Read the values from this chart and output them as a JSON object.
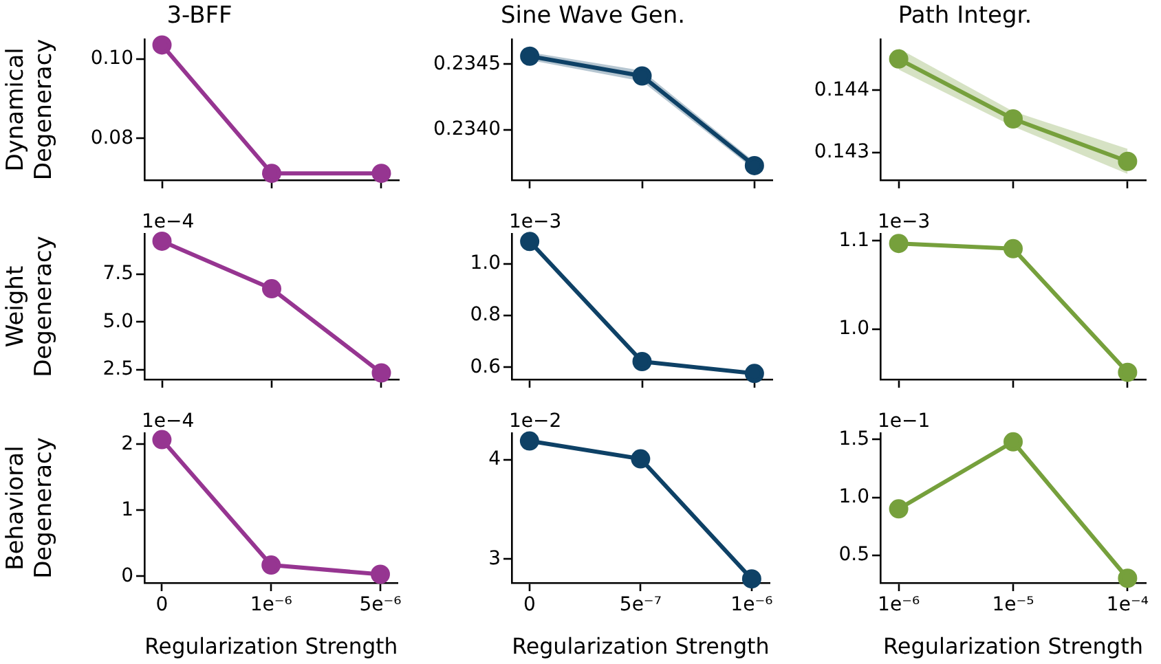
{
  "chart_data": [
    {
      "type": "line",
      "title": "3-BFF",
      "ylabel": "Dynamical Degeneracy",
      "categories": [
        null,
        null,
        null
      ],
      "series": [
        {
          "color": "#963591",
          "values": [
            0.1035,
            0.0712,
            0.0712
          ]
        }
      ],
      "ylim": [
        0.0695,
        0.105
      ],
      "yticks": [
        {
          "value": 0.08,
          "label": "0.08"
        },
        {
          "value": 0.1,
          "label": "0.10"
        }
      ],
      "tick_labels": "y",
      "marker": "circle",
      "line_style": "solid"
    },
    {
      "type": "line",
      "title": "Sine Wave Gen.",
      "categories": [
        null,
        null,
        null
      ],
      "series": [
        {
          "color": "#0e4166",
          "values": [
            0.23456,
            0.23441,
            0.23373
          ],
          "lower": [
            0.23453,
            0.23437,
            0.2337
          ],
          "upper": [
            0.23459,
            0.23445,
            0.23376
          ]
        }
      ],
      "ylim": [
        0.23362,
        0.23469
      ],
      "yticks": [
        {
          "value": 0.234,
          "label": "0.2340"
        },
        0.2345
      ],
      "tick_labels": "y",
      "marker": "circle",
      "line_style": "solid"
    },
    {
      "type": "line",
      "title": "Path Integr.",
      "categories": [
        null,
        null,
        null
      ],
      "series": [
        {
          "color": "#76a03c",
          "values": [
            0.1445,
            0.14354,
            0.14286
          ],
          "lower": [
            0.14433,
            0.14342,
            0.14266
          ],
          "upper": [
            0.14467,
            0.14366,
            0.14306
          ]
        }
      ],
      "ylim": [
        0.14256,
        0.14482
      ],
      "yticks": [
        0.143,
        0.144
      ],
      "tick_labels": "y",
      "marker": "circle",
      "line_style": "solid"
    },
    {
      "type": "line",
      "ylabel": "Weight Degeneracy",
      "categories": [
        null,
        null,
        null
      ],
      "series": [
        {
          "color": "#963591",
          "values": [
            9.21,
            6.73,
            2.34
          ]
        }
      ],
      "ylim": [
        2.0,
        9.6
      ],
      "yticks": [
        2.5,
        {
          "value": 5,
          "label": "5.0"
        },
        7.5
      ],
      "tick_labels": "y",
      "marker": "circle",
      "line_style": "solid",
      "annotations": [
        "1e−4"
      ]
    },
    {
      "type": "line",
      "categories": [
        null,
        null,
        null
      ],
      "series": [
        {
          "color": "#0e4166",
          "values": [
            1.086,
            0.622,
            0.576
          ]
        }
      ],
      "ylim": [
        0.553,
        1.116
      ],
      "yticks": [
        0.6,
        0.8,
        {
          "value": 1,
          "label": "1.0"
        }
      ],
      "tick_labels": "y",
      "marker": "circle",
      "line_style": "solid",
      "annotations": [
        "1e−3"
      ]
    },
    {
      "type": "line",
      "categories": [
        null,
        null,
        null
      ],
      "series": [
        {
          "color": "#76a03c",
          "values": [
            1.097,
            1.091,
            0.951
          ]
        }
      ],
      "ylim": [
        0.943,
        1.108
      ],
      "yticks": [
        {
          "value": 1,
          "label": "1.0"
        },
        1.1
      ],
      "tick_labels": "y",
      "marker": "circle",
      "line_style": "solid",
      "annotations": [
        "1e−3"
      ]
    },
    {
      "type": "line",
      "ylabel": "Behavioral Degeneracy",
      "xlabel": "Regularization Strength",
      "categories": [
        "0",
        "1e⁻⁶",
        "5e⁻⁶"
      ],
      "series": [
        {
          "color": "#963591",
          "values": [
            2.07,
            0.17,
            0.03
          ]
        }
      ],
      "ylim": [
        -0.1,
        2.17
      ],
      "yticks": [
        0,
        1,
        2
      ],
      "marker": "circle",
      "line_style": "solid",
      "annotations": [
        "1e−4"
      ]
    },
    {
      "type": "line",
      "xlabel": "Regularization Strength",
      "categories": [
        "0",
        "5e⁻⁷",
        "1e⁻⁶"
      ],
      "series": [
        {
          "color": "#0e4166",
          "values": [
            4.19,
            4.01,
            2.8
          ]
        }
      ],
      "ylim": [
        2.76,
        4.27
      ],
      "yticks": [
        3,
        4
      ],
      "marker": "circle",
      "line_style": "solid",
      "annotations": [
        "1e−2"
      ]
    },
    {
      "type": "line",
      "xlabel": "Regularization Strength",
      "categories": [
        "1e⁻⁶",
        "1e⁻⁵",
        "1e⁻⁴"
      ],
      "series": [
        {
          "color": "#76a03c",
          "values": [
            0.9,
            1.48,
            0.3
          ]
        }
      ],
      "ylim": [
        0.26,
        1.556
      ],
      "yticks": [
        0.5,
        {
          "value": 1,
          "label": "1.0"
        },
        1.5
      ],
      "marker": "circle",
      "line_style": "solid",
      "annotations": [
        "1e−1"
      ]
    }
  ]
}
